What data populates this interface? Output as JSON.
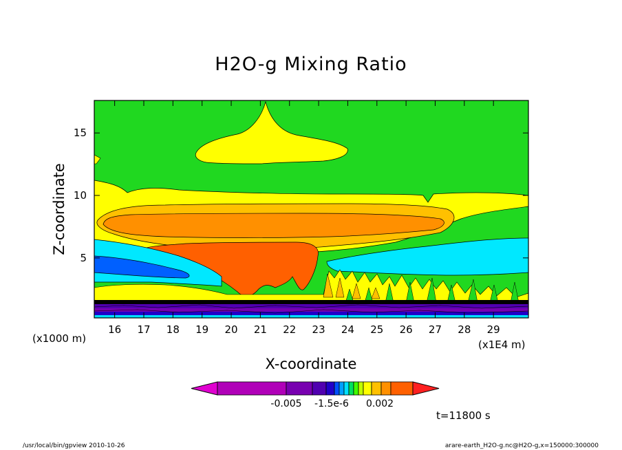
{
  "chart_data": {
    "type": "heatmap",
    "title": "H2O-g Mixing Ratio",
    "xlabel": "X-coordinate",
    "ylabel": "Z-coordinate",
    "x_unit": "(x1E4 m)",
    "y_unit": "(x1000 m)",
    "x_ticks": [
      16,
      17,
      18,
      19,
      20,
      21,
      22,
      23,
      24,
      25,
      26,
      27,
      28,
      29
    ],
    "y_ticks": [
      5,
      10,
      15
    ],
    "xlim": [
      15.3,
      30.2
    ],
    "ylim": [
      0.2,
      17.6
    ],
    "colorbar": {
      "tick_labels": [
        "-0.005",
        "-1.5e-6",
        "0.002"
      ],
      "colors": [
        "#e000d0",
        "#b000b8",
        "#7800b0",
        "#5000b0",
        "#2000c8",
        "#0050ff",
        "#00a0ff",
        "#00e0ff",
        "#00e060",
        "#40ff00",
        "#c0ff00",
        "#ffff00",
        "#ffc000",
        "#ff9000",
        "#ff6000",
        "#ff2020"
      ]
    }
  },
  "time_label": "t=11800 s",
  "footer_left": "/usr/local/bin/gpview  2010-10-26",
  "footer_right": "arare-earth_H2O-g.nc@H2O-g,x=150000:300000"
}
